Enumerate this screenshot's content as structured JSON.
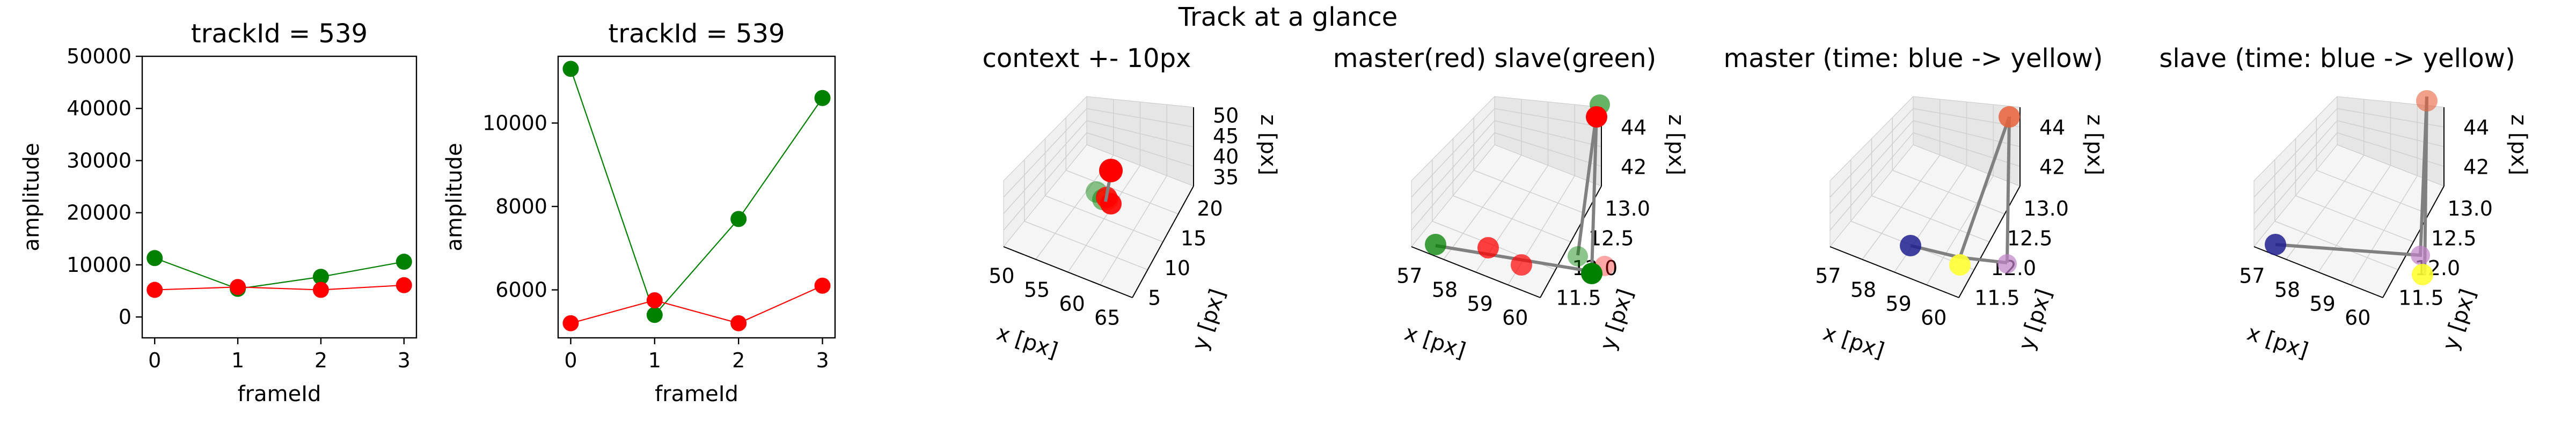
{
  "figure": {
    "suptitle": "Track at a glance"
  },
  "colors": {
    "master": "#ff0000",
    "slave": "#008000",
    "slave_fill": "#008000",
    "track_line": "#808080",
    "pane_left": "#f0f0f0",
    "pane_right": "#e6e6e6",
    "pane_floor": "#f5f5f5",
    "time_start": "#1f1f8f",
    "time_end": "#ffff33"
  },
  "chart_data": [
    {
      "type": "line",
      "title": "trackId = 539",
      "xlabel": "frameId",
      "ylabel": "amplitude",
      "x": [
        0,
        1,
        2,
        3
      ],
      "xticks": [
        "0",
        "1",
        "2",
        "3"
      ],
      "yticks": [
        "0",
        "10000",
        "20000",
        "30000",
        "40000",
        "50000"
      ],
      "xlim": [
        -0.15,
        3.15
      ],
      "ylim": [
        -4000,
        50000
      ],
      "series": [
        {
          "color": "#008000",
          "values": [
            11300,
            5400,
            7700,
            10600
          ]
        },
        {
          "color": "#ff0000",
          "values": [
            5200,
            5750,
            5200,
            6100
          ]
        }
      ],
      "grid": false
    },
    {
      "type": "line",
      "title": "trackId = 539",
      "xlabel": "frameId",
      "ylabel": "amplitude",
      "x": [
        0,
        1,
        2,
        3
      ],
      "xticks": [
        "0",
        "1",
        "2",
        "3"
      ],
      "yticks": [
        "6000",
        "8000",
        "10000"
      ],
      "xlim": [
        -0.15,
        3.15
      ],
      "ylim": [
        4850,
        11600
      ],
      "series": [
        {
          "color": "#008000",
          "values": [
            11300,
            5400,
            7700,
            10600
          ]
        },
        {
          "color": "#ff0000",
          "values": [
            5200,
            5750,
            5200,
            6100
          ]
        }
      ],
      "grid": false
    },
    {
      "type": "scatter",
      "projection": "3d",
      "title": "context +- 10px",
      "xlabel": "x [px]",
      "ylabel": "y [px]",
      "zlabel": "z [px]",
      "xticks": [
        "50",
        "55",
        "60",
        "65"
      ],
      "yticks": [
        "5",
        "10",
        "15",
        "20"
      ],
      "zticks": [
        "35",
        "40",
        "45",
        "50"
      ]
    },
    {
      "type": "scatter",
      "projection": "3d",
      "title": "master(red) slave(green)",
      "xlabel": "x [px]",
      "ylabel": "y [px]",
      "zlabel": "z [px]",
      "xticks": [
        "57",
        "58",
        "59",
        "60"
      ],
      "yticks": [
        "11.5",
        "12.0",
        "12.5",
        "13.0"
      ],
      "zticks": [
        "42",
        "44"
      ]
    },
    {
      "type": "scatter",
      "projection": "3d",
      "title": "master (time: blue -> yellow)",
      "xlabel": "x [px]",
      "ylabel": "y [px]",
      "zlabel": "z [px]",
      "xticks": [
        "57",
        "58",
        "59",
        "60"
      ],
      "yticks": [
        "11.5",
        "12.0",
        "12.5",
        "13.0"
      ],
      "zticks": [
        "42",
        "44"
      ]
    },
    {
      "type": "scatter",
      "projection": "3d",
      "title": "slave (time: blue -> yellow)",
      "xlabel": "x [px]",
      "ylabel": "y [px]",
      "zlabel": "z [px]",
      "xticks": [
        "57",
        "58",
        "59",
        "60"
      ],
      "yticks": [
        "11.5",
        "12.0",
        "12.5",
        "13.0"
      ],
      "zticks": [
        "42",
        "44"
      ]
    }
  ]
}
